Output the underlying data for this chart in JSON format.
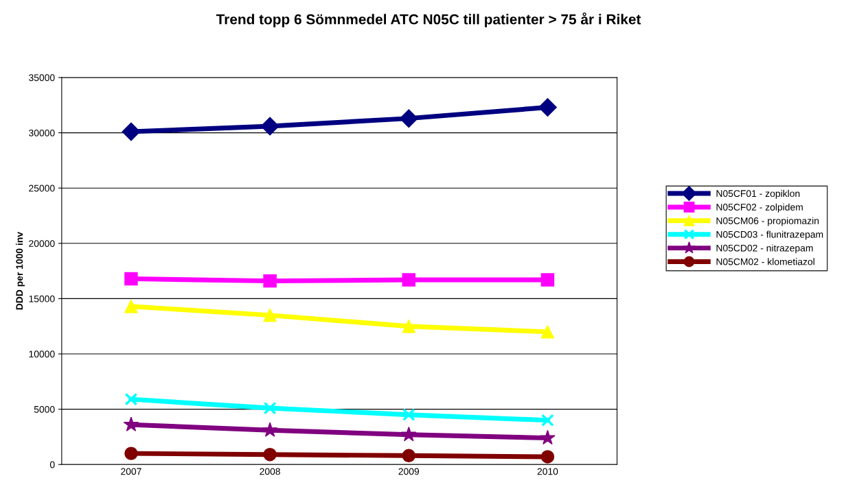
{
  "chart_data": {
    "type": "line",
    "title": "Trend topp 6 Sömnmedel ATC N05C till patienter > 75 år i Riket",
    "ylabel": "DDD per 1000 inv",
    "categories": [
      "2007",
      "2008",
      "2009",
      "2010"
    ],
    "series": [
      {
        "name": "N05CF01 - zopiklon",
        "color": "#000080",
        "marker": "diamond",
        "values": [
          30100,
          30600,
          31300,
          32300
        ]
      },
      {
        "name": "N05CF02 - zolpidem",
        "color": "#ff00ff",
        "marker": "square",
        "values": [
          16800,
          16600,
          16700,
          16700
        ]
      },
      {
        "name": "N05CM06 - propiomazin",
        "color": "#ffff00",
        "marker": "triangle",
        "values": [
          14300,
          13500,
          12500,
          12000
        ]
      },
      {
        "name": "N05CD03 - flunitrazepam",
        "color": "#00ffff",
        "marker": "cross",
        "values": [
          5900,
          5100,
          4500,
          4000
        ]
      },
      {
        "name": "N05CD02 - nitrazepam",
        "color": "#800080",
        "marker": "star",
        "values": [
          3600,
          3100,
          2700,
          2400
        ]
      },
      {
        "name": "N05CM02 - klometiazol",
        "color": "#800000",
        "marker": "circle",
        "values": [
          1000,
          900,
          800,
          700
        ]
      }
    ],
    "ylim": [
      0,
      35000
    ],
    "yticks": [
      0,
      5000,
      10000,
      15000,
      20000,
      25000,
      30000,
      35000
    ],
    "grid": "y",
    "legend": "right",
    "line_style": "solid"
  }
}
